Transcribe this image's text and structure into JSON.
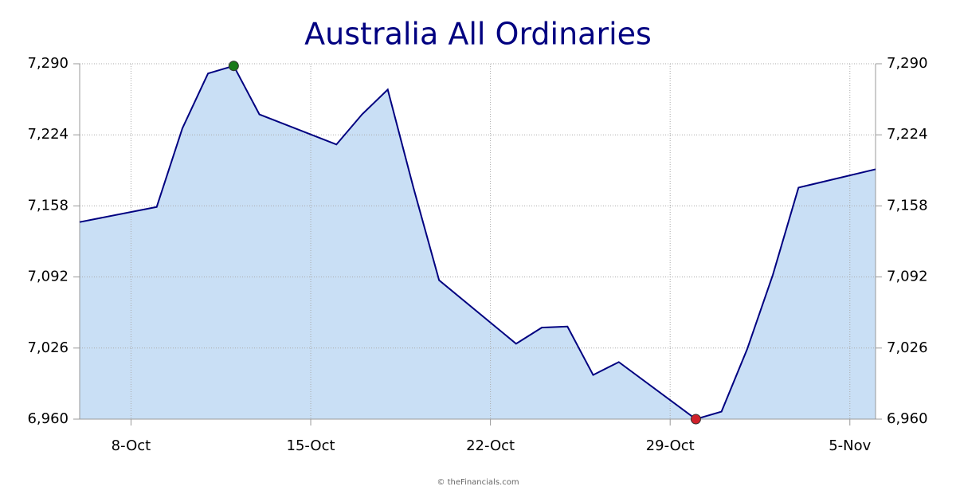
{
  "chart_data": {
    "type": "area",
    "title": "Australia All Ordinaries",
    "source": "© theFinancials.com",
    "x": [
      "6-Oct",
      "9-Oct",
      "10-Oct",
      "11-Oct",
      "12-Oct",
      "13-Oct",
      "16-Oct",
      "17-Oct",
      "18-Oct",
      "19-Oct",
      "20-Oct",
      "23-Oct",
      "24-Oct",
      "25-Oct",
      "26-Oct",
      "27-Oct",
      "30-Oct",
      "31-Oct",
      "1-Nov",
      "2-Nov",
      "3-Nov",
      "6-Nov"
    ],
    "values": [
      7143,
      7157,
      7230,
      7281,
      7288,
      7243,
      7215,
      7243,
      7266,
      7175,
      7089,
      7030,
      7045,
      7046,
      7001,
      7013,
      6960,
      6967,
      7025,
      7094,
      7175,
      7192
    ],
    "color": "#000080",
    "fill_color": "#c9dff5",
    "high_marker_color": "#1a7a1a",
    "low_marker_color": "#d0202a",
    "xlim": [
      "6-Oct",
      "6-Nov"
    ],
    "xticks": [
      "8-Oct",
      "15-Oct",
      "22-Oct",
      "29-Oct",
      "5-Nov"
    ],
    "ylim": [
      6960,
      7290
    ],
    "yticks": [
      {
        "value": 6960,
        "label": "6,960"
      },
      {
        "value": 7026,
        "label": "7,026"
      },
      {
        "value": 7092,
        "label": "7,092"
      },
      {
        "value": 7158,
        "label": "7,158"
      },
      {
        "value": 7224,
        "label": "7,224"
      },
      {
        "value": 7290,
        "label": "7,290"
      }
    ],
    "grid": true
  }
}
